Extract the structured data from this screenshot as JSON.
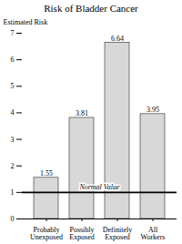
{
  "chart_data": {
    "type": "bar",
    "title": "Risk of Bladder Cancer",
    "ylabel": "Estimated Risk",
    "categories": [
      "Probably\nUnexposed",
      "Possibly\nExposed",
      "Definitely\nExposed",
      "All\nWorkers"
    ],
    "values": [
      1.55,
      3.81,
      6.64,
      3.95
    ],
    "color": "#d8d8d8",
    "ylim": [
      0,
      7
    ],
    "yticks": [
      0,
      1,
      2,
      3,
      4,
      5,
      6,
      7
    ],
    "grid": false,
    "data_labels": true,
    "reference_lines": [
      {
        "y": 1.0,
        "label": "Normal Value"
      }
    ]
  }
}
